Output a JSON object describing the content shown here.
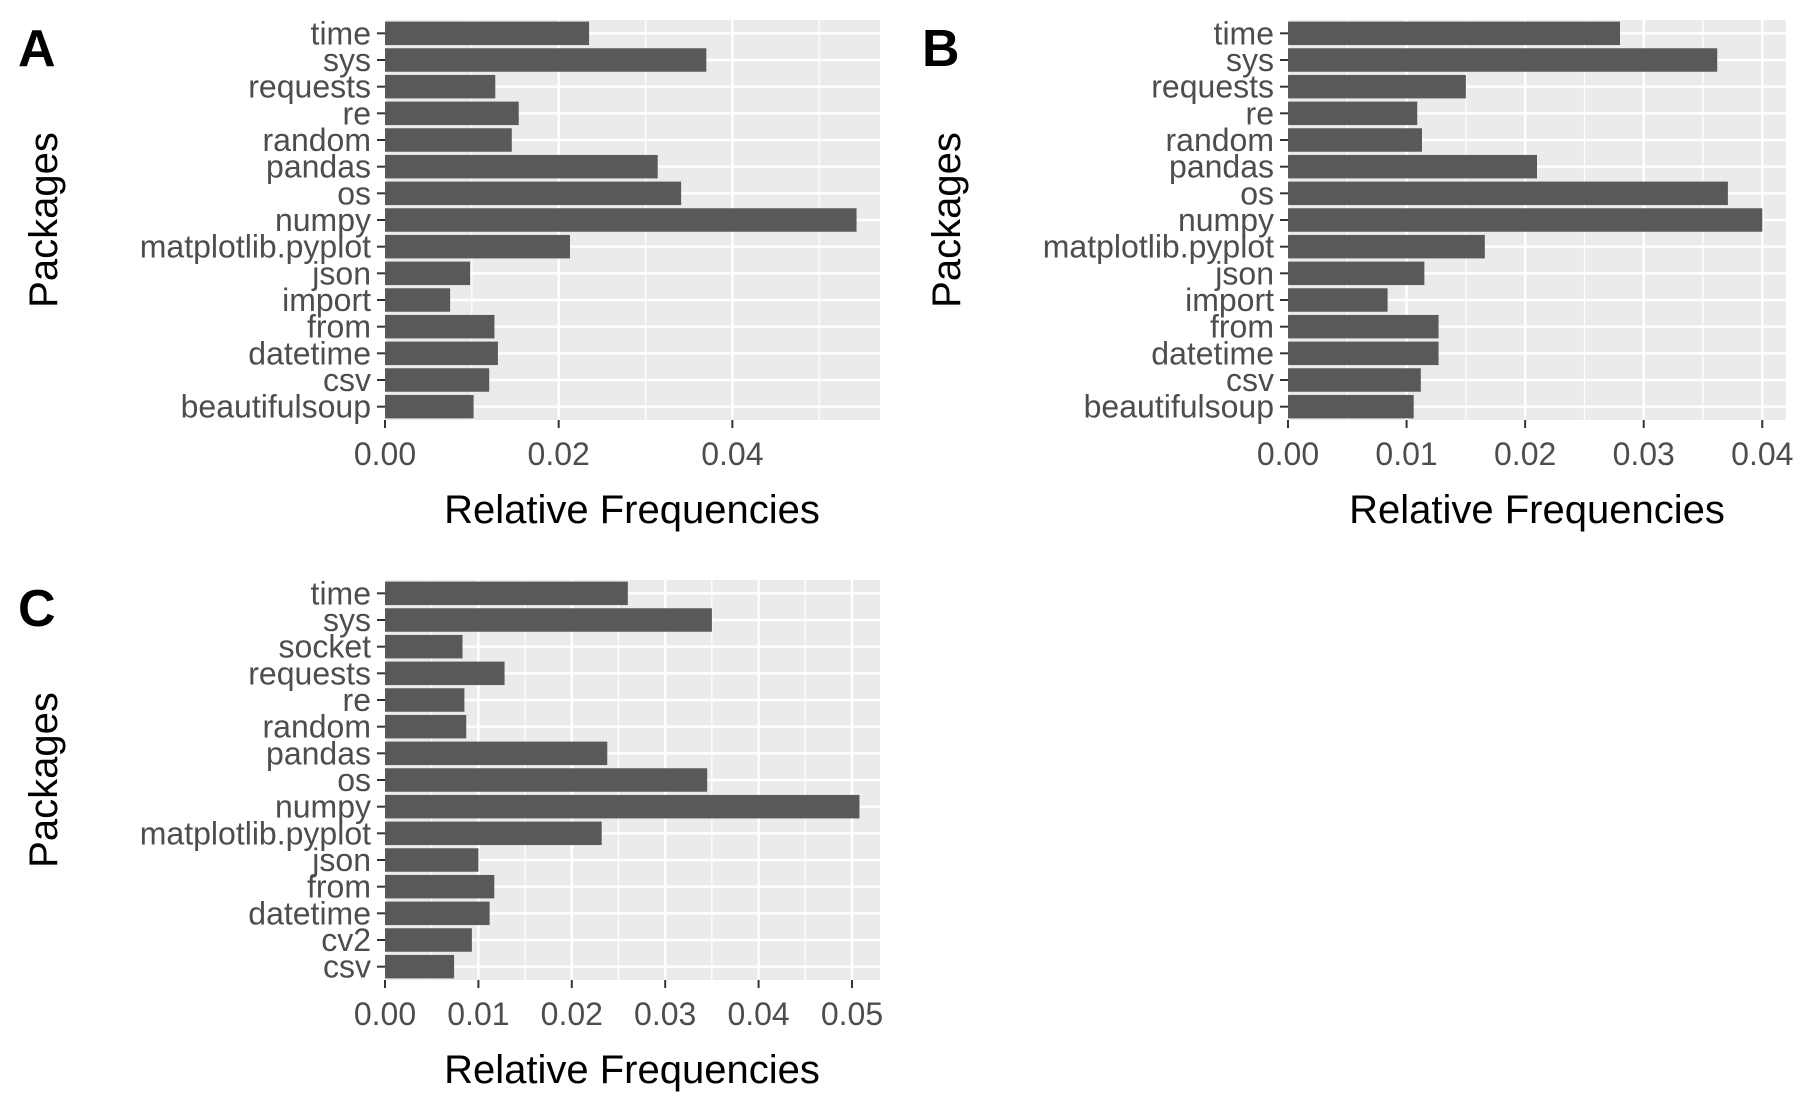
{
  "colors": {
    "panel_bg": "#ebebeb",
    "grid": "#ffffff",
    "bar": "#595959",
    "tick": "#4d4d4d",
    "tick_mark": "#333333"
  },
  "chart_data": [
    {
      "type": "bar",
      "orientation": "horizontal",
      "panel_label": "A",
      "xlabel": "Relative Frequencies",
      "ylabel": "Packages",
      "xlim": [
        0,
        0.057
      ],
      "xticks": [
        0,
        0.02,
        0.04
      ],
      "xtick_labels": [
        "0.00",
        "0.02",
        "0.04"
      ],
      "grid": true,
      "categories": [
        "time",
        "sys",
        "requests",
        "re",
        "random",
        "pandas",
        "os",
        "numpy",
        "matplotlib.pyplot",
        "json",
        "import",
        "from",
        "datetime",
        "csv",
        "beautifulsoup"
      ],
      "values": [
        0.0235,
        0.037,
        0.0127,
        0.0154,
        0.0146,
        0.0314,
        0.0341,
        0.0543,
        0.0213,
        0.0098,
        0.0075,
        0.0126,
        0.013,
        0.012,
        0.0102
      ]
    },
    {
      "type": "bar",
      "orientation": "horizontal",
      "panel_label": "B",
      "xlabel": "Relative Frequencies",
      "ylabel": "Packages",
      "xlim": [
        0,
        0.042
      ],
      "xticks": [
        0,
        0.01,
        0.02,
        0.03,
        0.04
      ],
      "xtick_labels": [
        "0.00",
        "0.01",
        "0.02",
        "0.03",
        "0.04"
      ],
      "grid": true,
      "categories": [
        "time",
        "sys",
        "requests",
        "re",
        "random",
        "pandas",
        "os",
        "numpy",
        "matplotlib.pyplot",
        "json",
        "import",
        "from",
        "datetime",
        "csv",
        "beautifulsoup"
      ],
      "values": [
        0.028,
        0.0362,
        0.015,
        0.0109,
        0.0113,
        0.021,
        0.0371,
        0.04,
        0.0166,
        0.0115,
        0.0084,
        0.0127,
        0.0127,
        0.0112,
        0.0106
      ]
    },
    {
      "type": "bar",
      "orientation": "horizontal",
      "panel_label": "C",
      "xlabel": "Relative Frequencies",
      "ylabel": "Packages",
      "xlim": [
        0,
        0.053
      ],
      "xticks": [
        0,
        0.01,
        0.02,
        0.03,
        0.04,
        0.05
      ],
      "xtick_labels": [
        "0.00",
        "0.01",
        "0.02",
        "0.03",
        "0.04",
        "0.05"
      ],
      "grid": true,
      "categories": [
        "time",
        "sys",
        "socket",
        "requests",
        "re",
        "random",
        "pandas",
        "os",
        "numpy",
        "matplotlib.pyplot",
        "json",
        "from",
        "datetime",
        "cv2",
        "csv"
      ],
      "values": [
        0.026,
        0.035,
        0.0083,
        0.0128,
        0.0085,
        0.0087,
        0.0238,
        0.0345,
        0.0508,
        0.0232,
        0.01,
        0.0117,
        0.0112,
        0.0093,
        0.0074
      ]
    }
  ]
}
